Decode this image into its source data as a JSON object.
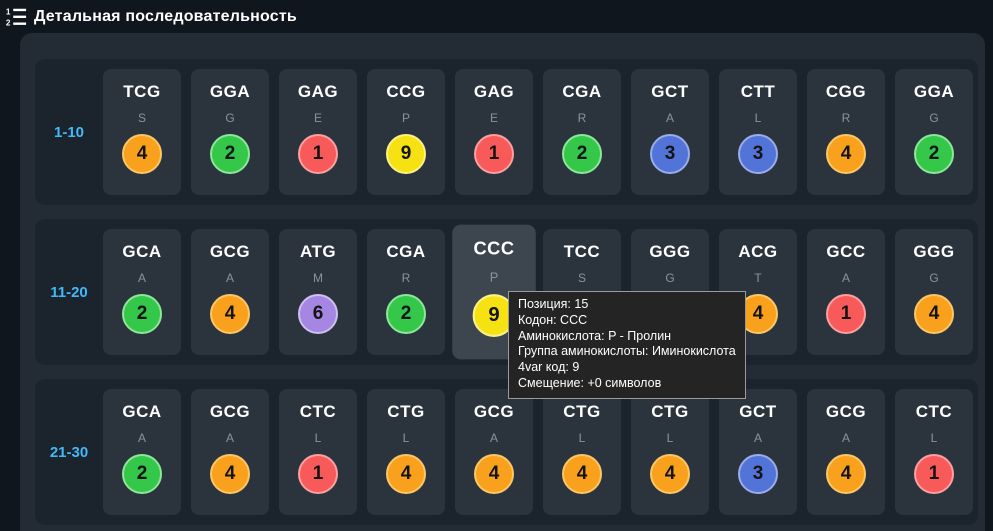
{
  "header": {
    "title": "Детальная последовательность",
    "icon": "ordered-list-icon"
  },
  "colors": {
    "orange": {
      "fill": "#f9a11c",
      "border": "#fbc766"
    },
    "green": {
      "fill": "#35c74a",
      "border": "#8ce79a"
    },
    "red": {
      "fill": "#f85a5a",
      "border": "#faa0a0"
    },
    "yellow": {
      "fill": "#f6e112",
      "border": "#fbf188"
    },
    "blue": {
      "fill": "#5274d8",
      "border": "#98ade9"
    },
    "purple": {
      "fill": "#a586e2",
      "border": "#cfbef2"
    }
  },
  "rows": [
    {
      "range": "1-10",
      "cards": [
        {
          "codon": "TCG",
          "amino": "S",
          "value": "4",
          "color": "orange",
          "highlighted": false
        },
        {
          "codon": "GGA",
          "amino": "G",
          "value": "2",
          "color": "green",
          "highlighted": false
        },
        {
          "codon": "GAG",
          "amino": "E",
          "value": "1",
          "color": "red",
          "highlighted": false
        },
        {
          "codon": "CCG",
          "amino": "P",
          "value": "9",
          "color": "yellow",
          "highlighted": false
        },
        {
          "codon": "GAG",
          "amino": "E",
          "value": "1",
          "color": "red",
          "highlighted": false
        },
        {
          "codon": "CGA",
          "amino": "R",
          "value": "2",
          "color": "green",
          "highlighted": false
        },
        {
          "codon": "GCT",
          "amino": "A",
          "value": "3",
          "color": "blue",
          "highlighted": false
        },
        {
          "codon": "CTT",
          "amino": "L",
          "value": "3",
          "color": "blue",
          "highlighted": false
        },
        {
          "codon": "CGG",
          "amino": "R",
          "value": "4",
          "color": "orange",
          "highlighted": false
        },
        {
          "codon": "GGA",
          "amino": "G",
          "value": "2",
          "color": "green",
          "highlighted": false
        }
      ]
    },
    {
      "range": "11-20",
      "cards": [
        {
          "codon": "GCA",
          "amino": "A",
          "value": "2",
          "color": "green",
          "highlighted": false
        },
        {
          "codon": "GCG",
          "amino": "A",
          "value": "4",
          "color": "orange",
          "highlighted": false
        },
        {
          "codon": "ATG",
          "amino": "M",
          "value": "6",
          "color": "purple",
          "highlighted": false
        },
        {
          "codon": "CGA",
          "amino": "R",
          "value": "2",
          "color": "green",
          "highlighted": false
        },
        {
          "codon": "CCC",
          "amino": "P",
          "value": "9",
          "color": "yellow",
          "highlighted": true
        },
        {
          "codon": "TCC",
          "amino": "S",
          "value": null,
          "color": null,
          "highlighted": false
        },
        {
          "codon": "GGG",
          "amino": "G",
          "value": null,
          "color": null,
          "highlighted": false
        },
        {
          "codon": "ACG",
          "amino": "T",
          "value": "4",
          "color": "orange",
          "highlighted": false
        },
        {
          "codon": "GCC",
          "amino": "A",
          "value": "1",
          "color": "red",
          "highlighted": false
        },
        {
          "codon": "GGG",
          "amino": "G",
          "value": "4",
          "color": "orange",
          "highlighted": false
        }
      ]
    },
    {
      "range": "21-30",
      "cards": [
        {
          "codon": "GCA",
          "amino": "A",
          "value": "2",
          "color": "green",
          "highlighted": false
        },
        {
          "codon": "GCG",
          "amino": "A",
          "value": "4",
          "color": "orange",
          "highlighted": false
        },
        {
          "codon": "CTC",
          "amino": "L",
          "value": "1",
          "color": "red",
          "highlighted": false
        },
        {
          "codon": "CTG",
          "amino": "L",
          "value": "4",
          "color": "orange",
          "highlighted": false
        },
        {
          "codon": "GCG",
          "amino": "A",
          "value": "4",
          "color": "orange",
          "highlighted": false
        },
        {
          "codon": "CTG",
          "amino": "L",
          "value": "4",
          "color": "orange",
          "highlighted": false
        },
        {
          "codon": "CTG",
          "amino": "L",
          "value": "4",
          "color": "orange",
          "highlighted": false
        },
        {
          "codon": "GCT",
          "amino": "A",
          "value": "3",
          "color": "blue",
          "highlighted": false
        },
        {
          "codon": "GCG",
          "amino": "A",
          "value": "4",
          "color": "orange",
          "highlighted": false
        },
        {
          "codon": "CTC",
          "amino": "L",
          "value": "1",
          "color": "red",
          "highlighted": false
        }
      ]
    }
  ],
  "tooltip": {
    "lines": [
      "Позиция: 15",
      "Кодон: CCC",
      "Аминокислота: P - Пролин",
      "Группа аминокислоты: Иминокислота",
      "4var код: 9",
      "Смещение: +0 символов"
    ]
  }
}
